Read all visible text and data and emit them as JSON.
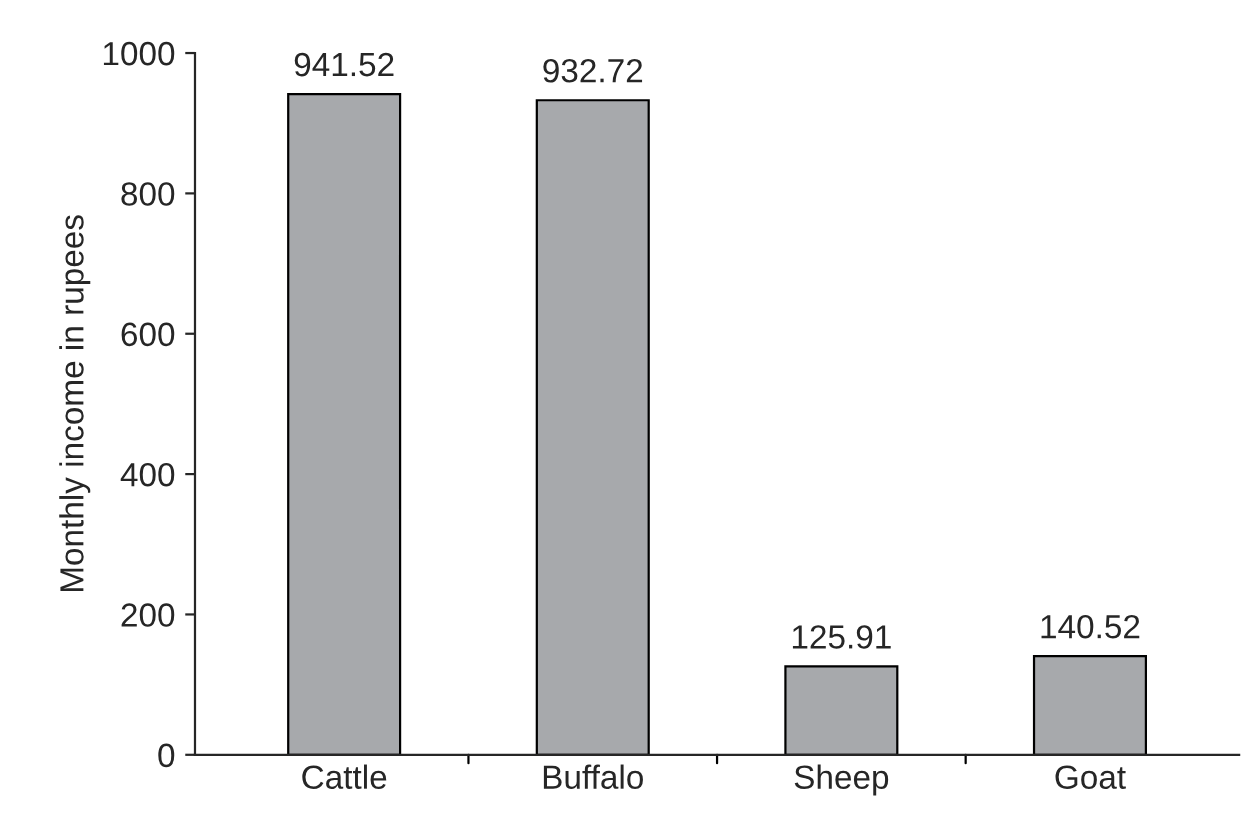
{
  "chart_data": {
    "type": "bar",
    "ylabel": "Monthly income in rupees",
    "categories": [
      "Cattle",
      "Buffalo",
      "Sheep",
      "Goat"
    ],
    "values": [
      941.52,
      932.72,
      125.91,
      140.52
    ],
    "color": "#a7a9ac",
    "ylim": [
      0,
      1000
    ],
    "yticks": [
      0,
      200,
      400,
      600,
      800,
      1000
    ],
    "data_labels": true,
    "grid": false
  }
}
